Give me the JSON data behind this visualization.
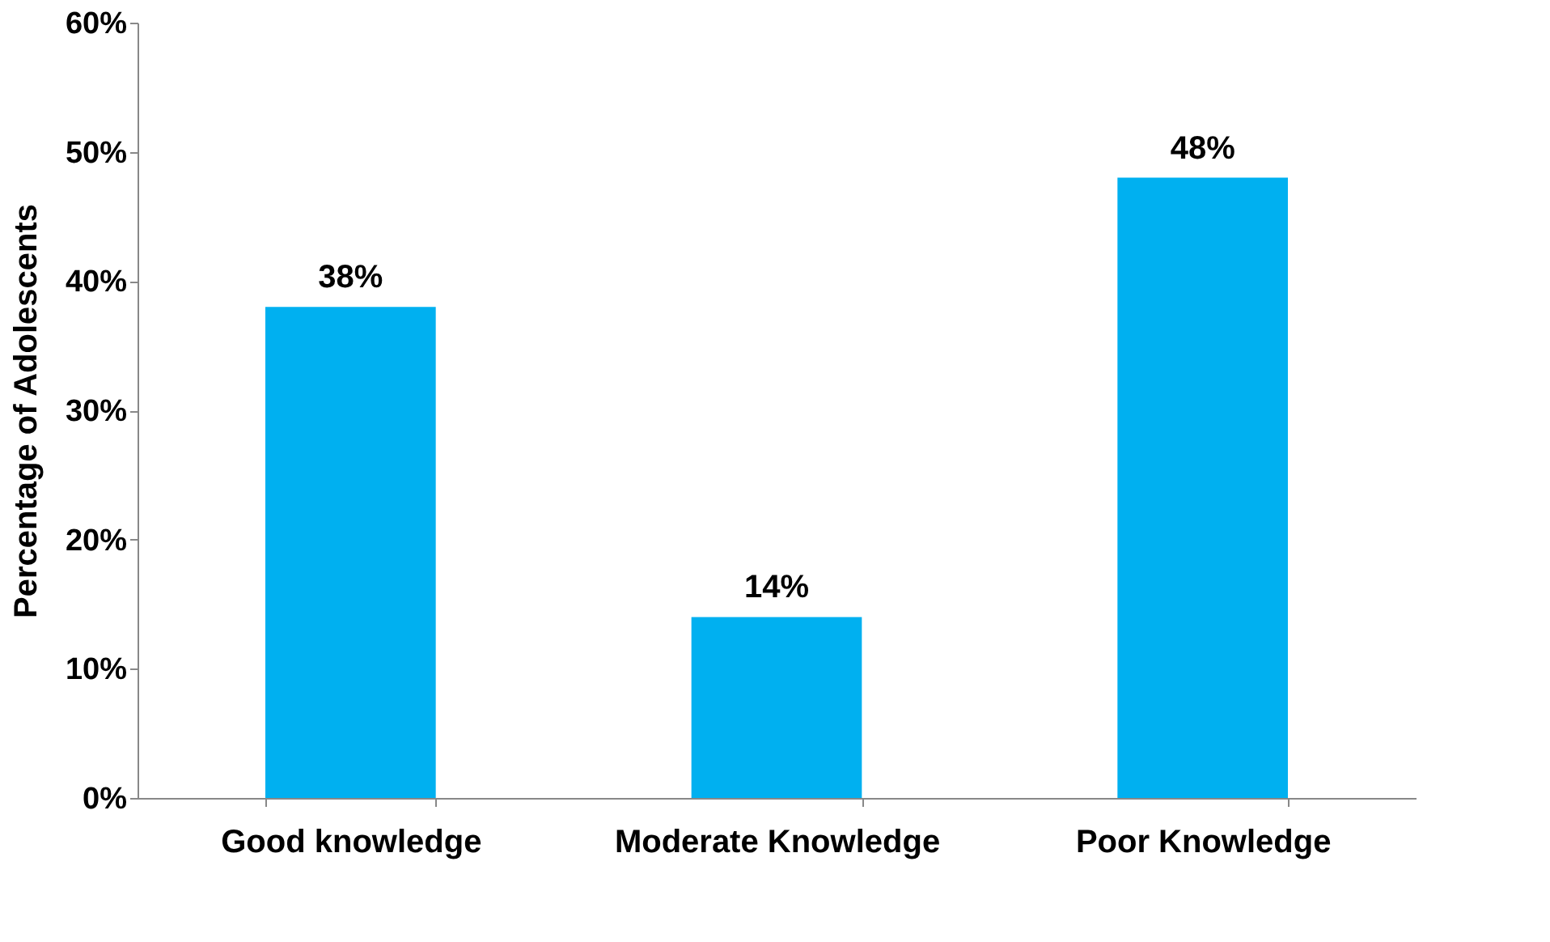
{
  "chart_data": {
    "type": "bar",
    "ylabel": "Percentage of Adolescents",
    "categories": [
      "Good knowledge",
      "Moderate Knowledge",
      "Poor Knowledge"
    ],
    "values": [
      38,
      14,
      48
    ],
    "color": "#00b0f0",
    "value_labels": [
      "38%",
      "14%",
      "48%"
    ],
    "ylim": [
      0,
      60
    ],
    "yticks": [
      {
        "value": 0,
        "label": "0%"
      },
      {
        "value": 10,
        "label": "10%"
      },
      {
        "value": 20,
        "label": "20%"
      },
      {
        "value": 30,
        "label": "30%"
      },
      {
        "value": 40,
        "label": "40%"
      },
      {
        "value": 50,
        "label": "50%"
      },
      {
        "value": 60,
        "label": "60%"
      }
    ],
    "grid": false
  }
}
